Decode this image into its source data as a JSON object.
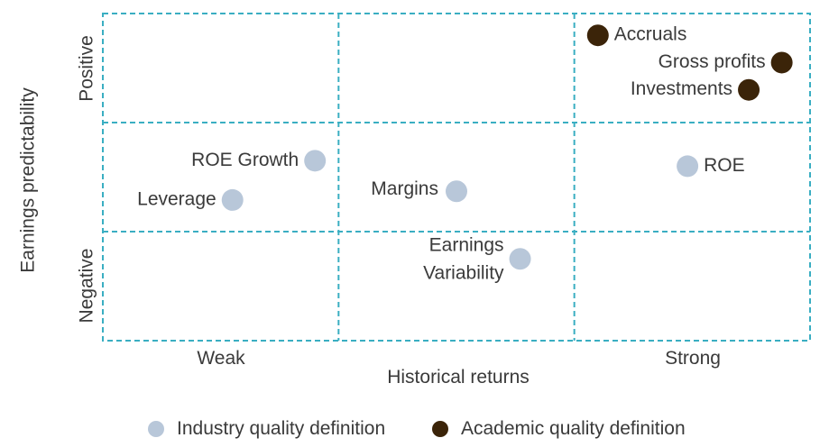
{
  "chart_data": {
    "type": "scatter",
    "xlabel": "Historical returns",
    "ylabel": "Earnings predictability",
    "x_tick_labels": [
      "Weak",
      "Strong"
    ],
    "y_tick_labels": [
      "Positive",
      "Negative"
    ],
    "grid": true,
    "legend_position": "bottom",
    "series": [
      {
        "name": "Industry quality definition",
        "color": "#b8c7d9",
        "points": [
          {
            "label": "ROE Growth",
            "x": 0.9,
            "y": 1.65
          },
          {
            "label": "Leverage",
            "x": 0.55,
            "y": 1.29
          },
          {
            "label": "Margins",
            "x": 1.5,
            "y": 1.37
          },
          {
            "label": "Earnings Variability",
            "x": 1.77,
            "y": 0.75
          },
          {
            "label": "ROE",
            "x": 2.48,
            "y": 1.6
          }
        ]
      },
      {
        "name": "Academic quality definition",
        "color": "#3b2409",
        "points": [
          {
            "label": "Accruals",
            "x": 2.1,
            "y": 2.8
          },
          {
            "label": "Gross profits",
            "x": 2.88,
            "y": 2.55
          },
          {
            "label": "Investments",
            "x": 2.74,
            "y": 2.3
          }
        ]
      }
    ]
  }
}
